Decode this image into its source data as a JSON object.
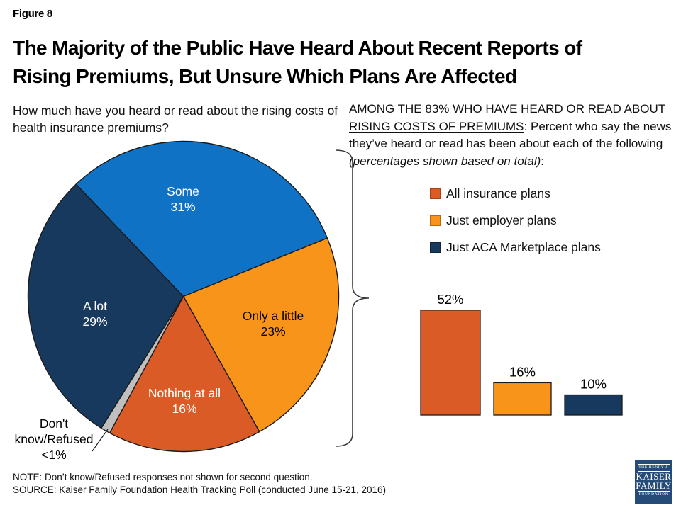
{
  "figure_label": "Figure 8",
  "title_line1": "The Majority of the Public Have Heard About Recent Reports of",
  "title_line2": "Rising Premiums, But Unsure Which Plans Are Affected",
  "question": "How much have you heard or read about the rising costs of health insurance premiums?",
  "right_heading": {
    "underlined": "AMONG THE 83% WHO HAVE HEARD OR READ ABOUT RISING COSTS OF PREMIUMS",
    "rest": ": Percent who say the news they’ve heard or read has been about each of the following ",
    "italic": "(percentages shown based on total)",
    "end": ":"
  },
  "note": "NOTE: Don’t know/Refused responses not shown for second question.",
  "source": "SOURCE: Kaiser Family Foundation Health Tracking Poll (conducted June 15-21, 2016)",
  "logo": {
    "line1": "THE HENRY J.",
    "line2": "KAISER",
    "line3": "FAMILY",
    "line4": "FOUNDATION"
  },
  "colors": {
    "blue": "#1072C4",
    "orange": "#F9941A",
    "dark_orange": "#DB5B27",
    "navy": "#17395D",
    "gray": "#BFBFBF",
    "slice_stroke": "#1a1a1a",
    "legend_borders": [
      "#A84315",
      "#B36A0E",
      "#10253C"
    ]
  },
  "chart_data": [
    {
      "type": "pie",
      "title": "How much have you heard or read about the rising costs of health insurance premiums?",
      "start_angle_deg": -43.7,
      "direction": "clockwise",
      "slices": [
        {
          "label": "Some",
          "value": 31,
          "value_label": "31%",
          "color": "#1072C4",
          "text_color": "#ffffff"
        },
        {
          "label": "Only a little",
          "value": 23,
          "value_label": "23%",
          "color": "#F9941A",
          "text_color": "#000000"
        },
        {
          "label": "Nothing at all",
          "value": 16,
          "value_label": "16%",
          "color": "#DB5B27",
          "text_color": "#ffffff"
        },
        {
          "label": "Don't know/Refused",
          "value": 1,
          "value_label": "<1%",
          "color": "#BFBFBF",
          "text_color": "#000000"
        },
        {
          "label": "A lot",
          "value": 29,
          "value_label": "29%",
          "color": "#17395D",
          "text_color": "#ffffff"
        }
      ]
    },
    {
      "type": "bar",
      "categories": [
        "All insurance plans",
        "Just employer plans",
        "Just ACA Marketplace plans"
      ],
      "values": [
        52,
        16,
        10
      ],
      "value_labels": [
        "52%",
        "16%",
        "10%"
      ],
      "colors": [
        "#DB5B27",
        "#F9941A",
        "#17395D"
      ],
      "ylim": [
        0,
        60
      ],
      "axes": "hidden",
      "data_labels": "above bars",
      "legend_position": "above chart, vertical list"
    }
  ]
}
